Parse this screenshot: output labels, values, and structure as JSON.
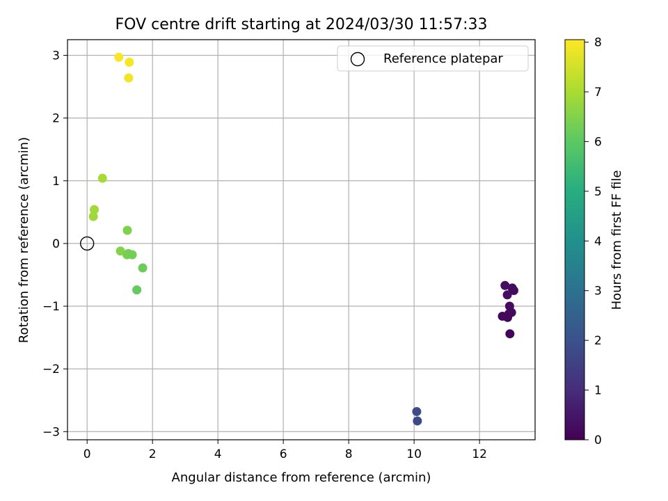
{
  "chart_data": {
    "type": "scatter",
    "title": "FOV centre drift starting at 2024/03/30 11:57:33",
    "xlabel": "Angular distance from reference (arcmin)",
    "ylabel": "Rotation from reference (arcmin)",
    "xlim": [
      -0.6,
      13.7
    ],
    "ylim": [
      -3.13,
      3.25
    ],
    "xticks": [
      0,
      2,
      4,
      6,
      8,
      10,
      12
    ],
    "yticks": [
      3,
      2,
      1,
      0,
      -1,
      -2,
      -3
    ],
    "ytick_labels": [
      "3",
      "2",
      "1",
      "0",
      "−1",
      "−2",
      "−3"
    ],
    "grid": true,
    "legend": {
      "placement": "top-right",
      "entries": [
        "Reference platepar"
      ]
    },
    "reference_point": {
      "x": 0,
      "y": 0,
      "label": "Reference platepar"
    },
    "colorbar": {
      "label": "Hours from first FF file",
      "range": [
        0,
        8.05
      ],
      "ticks": [
        0,
        1,
        2,
        3,
        4,
        5,
        6,
        7,
        8
      ],
      "colormap": "viridis"
    },
    "points": [
      {
        "x": 0.97,
        "y": 2.97,
        "c": 8.0
      },
      {
        "x": 1.29,
        "y": 2.89,
        "c": 7.95
      },
      {
        "x": 1.27,
        "y": 2.64,
        "c": 7.9
      },
      {
        "x": 0.47,
        "y": 1.04,
        "c": 6.95
      },
      {
        "x": 0.22,
        "y": 0.54,
        "c": 6.9
      },
      {
        "x": 0.19,
        "y": 0.43,
        "c": 6.85
      },
      {
        "x": 1.23,
        "y": 0.21,
        "c": 6.45
      },
      {
        "x": 1.02,
        "y": -0.12,
        "c": 6.5
      },
      {
        "x": 1.22,
        "y": -0.18,
        "c": 6.4
      },
      {
        "x": 1.26,
        "y": -0.16,
        "c": 6.35
      },
      {
        "x": 1.38,
        "y": -0.18,
        "c": 6.3
      },
      {
        "x": 1.7,
        "y": -0.39,
        "c": 6.2
      },
      {
        "x": 1.52,
        "y": -0.74,
        "c": 6.1
      },
      {
        "x": 10.08,
        "y": -2.68,
        "c": 1.85
      },
      {
        "x": 10.1,
        "y": -2.83,
        "c": 1.8
      },
      {
        "x": 12.78,
        "y": -0.67,
        "c": 0.35
      },
      {
        "x": 13.0,
        "y": -0.71,
        "c": 0.3
      },
      {
        "x": 13.05,
        "y": -0.75,
        "c": 0.25
      },
      {
        "x": 12.85,
        "y": -0.82,
        "c": 0.3
      },
      {
        "x": 12.92,
        "y": -1.0,
        "c": 0.25
      },
      {
        "x": 12.98,
        "y": -1.1,
        "c": 0.2
      },
      {
        "x": 12.9,
        "y": -1.12,
        "c": 0.2
      },
      {
        "x": 12.7,
        "y": -1.16,
        "c": 0.15
      },
      {
        "x": 12.86,
        "y": -1.18,
        "c": 0.15
      },
      {
        "x": 12.93,
        "y": -1.44,
        "c": 0.1
      }
    ]
  }
}
